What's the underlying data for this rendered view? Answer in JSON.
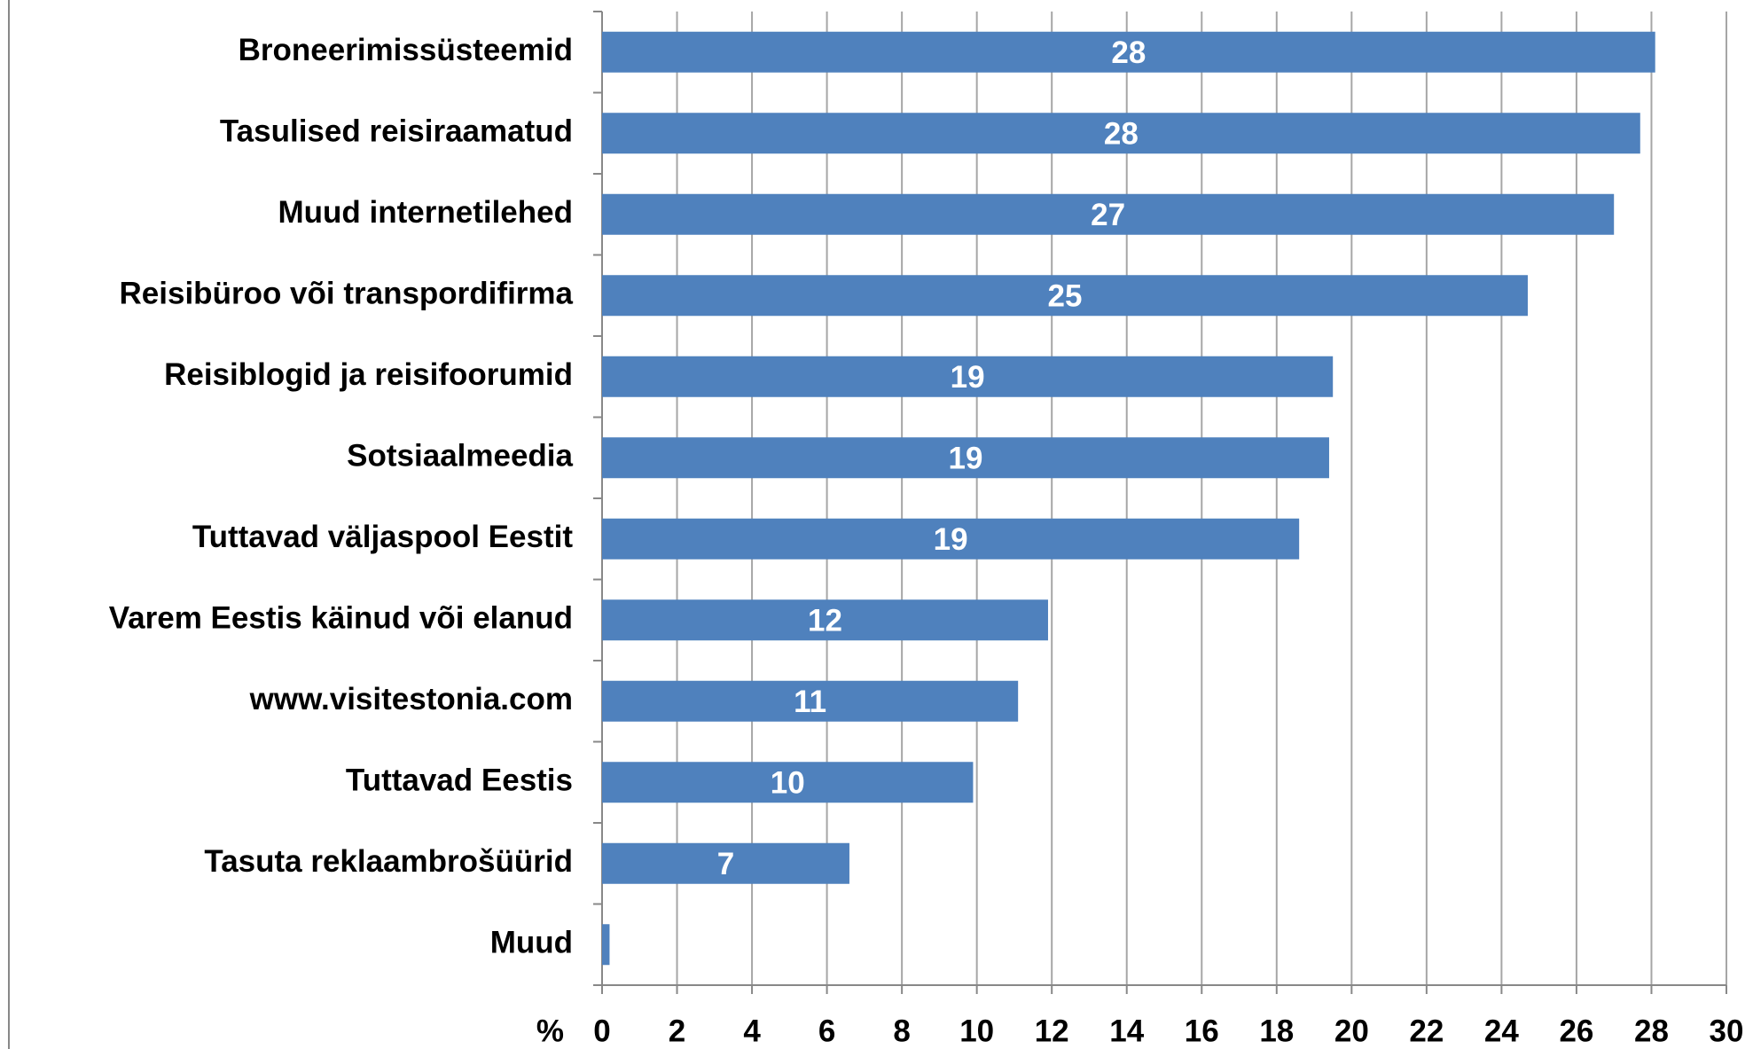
{
  "chart_data": {
    "type": "bar",
    "orientation": "horizontal",
    "categories": [
      "Broneerimissüsteemid",
      "Tasulised reisiraamatud",
      "Muud internetilehed",
      "Reisibüroo või transpordifirma",
      "Reisiblogid ja reisifoorumid",
      "Sotsiaalmeedia",
      "Tuttavad väljaspool Eestit",
      "Varem Eestis käinud või elanud",
      "www.visitestonia.com",
      "Tuttavad Eestis",
      "Tasuta reklaambrošüürid",
      "Muud"
    ],
    "values": [
      28.1,
      27.7,
      27.0,
      24.7,
      19.5,
      19.4,
      18.6,
      11.9,
      11.1,
      9.9,
      6.6,
      0.2
    ],
    "value_labels": [
      "28",
      "28",
      "27",
      "25",
      "19",
      "19",
      "19",
      "12",
      "11",
      "10",
      "7",
      null
    ],
    "color": "#4f81bd",
    "xlabel": "%",
    "xlim": [
      0,
      30
    ],
    "xticks": [
      0,
      2,
      4,
      6,
      8,
      10,
      12,
      14,
      16,
      18,
      20,
      22,
      24,
      26,
      28,
      30
    ],
    "grid": true
  }
}
